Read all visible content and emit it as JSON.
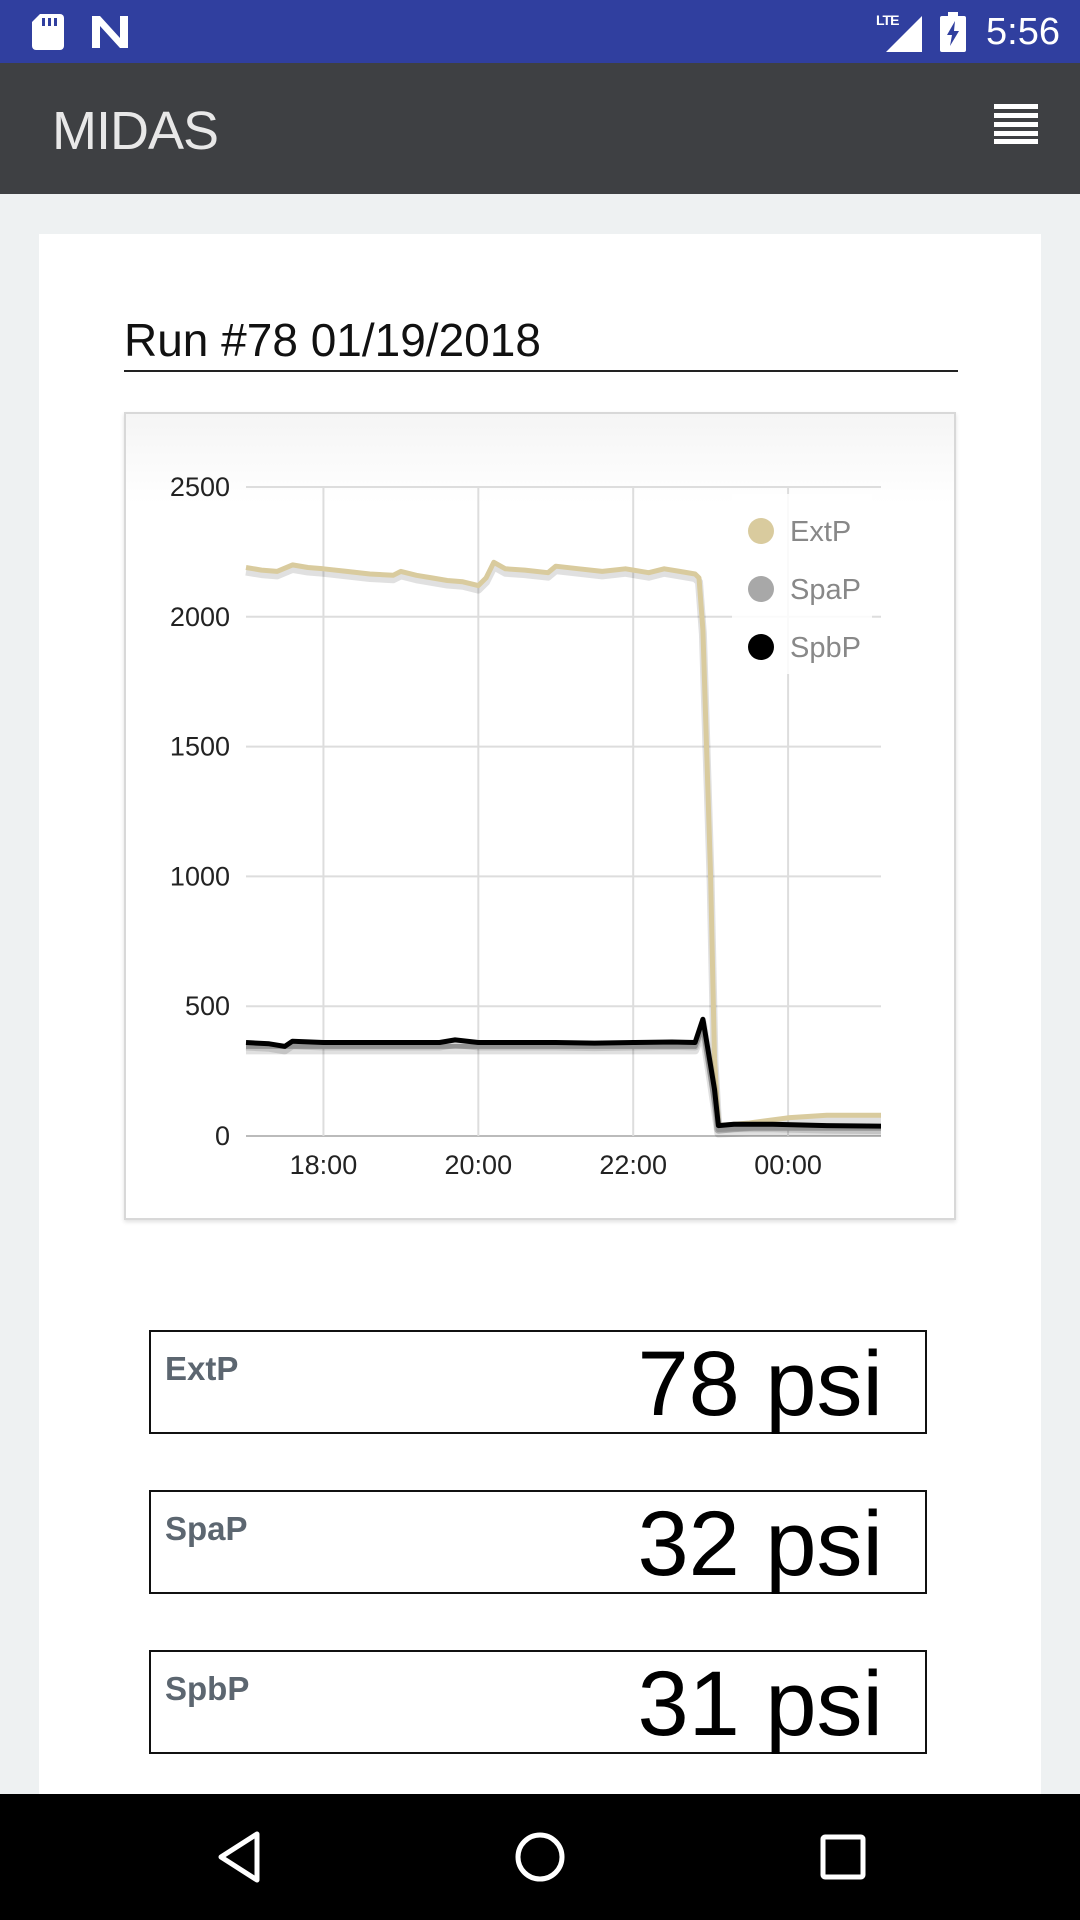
{
  "status_bar": {
    "network": "LTE",
    "time": "5:56",
    "icons": [
      "sd-card-icon",
      "n-notification-icon",
      "signal-icon",
      "battery-charging-icon"
    ]
  },
  "app_bar": {
    "logo_text": "MIDAS",
    "menu_icon": "hamburger-menu-icon"
  },
  "run": {
    "title": "Run #78 01/19/2018"
  },
  "chart_data": {
    "type": "line",
    "xlabel": "",
    "ylabel": "",
    "ylim": [
      0,
      2500
    ],
    "yticks": [
      "0",
      "500",
      "1000",
      "1500",
      "2000",
      "2500"
    ],
    "xticks": [
      {
        "label": "18:00",
        "t": 18.0
      },
      {
        "label": "20:00",
        "t": 20.0
      },
      {
        "label": "22:00",
        "t": 22.0
      },
      {
        "label": "00:00",
        "t": 24.0
      }
    ],
    "xlim": [
      17.0,
      25.2
    ],
    "grid": true,
    "legend": "top-right",
    "series": [
      {
        "name": "ExtP",
        "color": "#d9cb9e",
        "points": [
          [
            17.0,
            2190
          ],
          [
            17.2,
            2180
          ],
          [
            17.4,
            2175
          ],
          [
            17.6,
            2200
          ],
          [
            17.8,
            2190
          ],
          [
            18.0,
            2185
          ],
          [
            18.3,
            2175
          ],
          [
            18.6,
            2165
          ],
          [
            18.9,
            2160
          ],
          [
            19.0,
            2175
          ],
          [
            19.2,
            2160
          ],
          [
            19.4,
            2150
          ],
          [
            19.6,
            2140
          ],
          [
            19.8,
            2135
          ],
          [
            20.0,
            2120
          ],
          [
            20.1,
            2150
          ],
          [
            20.2,
            2210
          ],
          [
            20.35,
            2185
          ],
          [
            20.6,
            2180
          ],
          [
            20.9,
            2170
          ],
          [
            21.0,
            2195
          ],
          [
            21.3,
            2185
          ],
          [
            21.6,
            2175
          ],
          [
            21.9,
            2185
          ],
          [
            22.2,
            2170
          ],
          [
            22.4,
            2185
          ],
          [
            22.6,
            2175
          ],
          [
            22.8,
            2165
          ],
          [
            22.85,
            2150
          ],
          [
            22.9,
            1950
          ],
          [
            23.0,
            1000
          ],
          [
            23.05,
            300
          ],
          [
            23.1,
            40
          ],
          [
            23.5,
            50
          ],
          [
            24.0,
            70
          ],
          [
            24.5,
            80
          ],
          [
            25.2,
            80
          ]
        ]
      },
      {
        "name": "SpaP",
        "color": "#a8a8a8",
        "points": [
          [
            17.0,
            345
          ],
          [
            17.5,
            345
          ],
          [
            18.0,
            345
          ],
          [
            19.0,
            345
          ],
          [
            20.0,
            345
          ],
          [
            21.0,
            345
          ],
          [
            22.0,
            345
          ],
          [
            22.8,
            345
          ],
          [
            22.9,
            420
          ],
          [
            23.0,
            230
          ],
          [
            23.1,
            25
          ],
          [
            23.5,
            30
          ],
          [
            24.0,
            30
          ],
          [
            25.2,
            30
          ]
        ]
      },
      {
        "name": "SpbP",
        "color": "#000000",
        "points": [
          [
            17.0,
            360
          ],
          [
            17.3,
            355
          ],
          [
            17.5,
            345
          ],
          [
            17.6,
            365
          ],
          [
            18.0,
            360
          ],
          [
            18.5,
            360
          ],
          [
            19.0,
            360
          ],
          [
            19.5,
            360
          ],
          [
            19.7,
            370
          ],
          [
            20.0,
            360
          ],
          [
            20.5,
            360
          ],
          [
            21.0,
            360
          ],
          [
            21.5,
            358
          ],
          [
            22.0,
            360
          ],
          [
            22.5,
            362
          ],
          [
            22.8,
            360
          ],
          [
            22.9,
            450
          ],
          [
            22.95,
            360
          ],
          [
            23.05,
            180
          ],
          [
            23.1,
            40
          ],
          [
            23.3,
            45
          ],
          [
            23.8,
            45
          ],
          [
            24.5,
            40
          ],
          [
            25.2,
            38
          ]
        ]
      }
    ]
  },
  "readouts": [
    {
      "label": "ExtP",
      "value": "78 psi"
    },
    {
      "label": "SpaP",
      "value": "32 psi"
    },
    {
      "label": "SpbP",
      "value": "31 psi"
    }
  ],
  "nav_bar": {
    "icons": [
      "back-icon",
      "home-icon",
      "recents-icon"
    ]
  }
}
